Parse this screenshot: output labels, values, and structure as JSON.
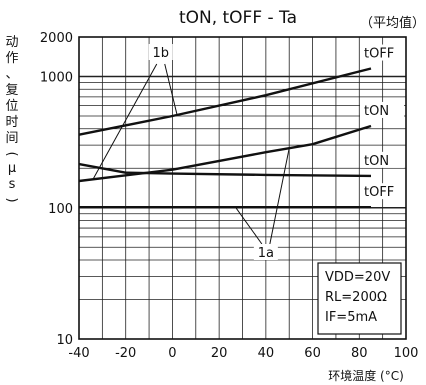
{
  "chart_data": {
    "type": "line",
    "title": "tON, tOFF - Ta",
    "title_note": "（平均值）",
    "ylabel": "动作、复位时间（µs）",
    "xlabel": "环境温度 (°C)",
    "xlim": [
      -40,
      100
    ],
    "ylim": [
      10,
      2000
    ],
    "yscale": "log",
    "grid": true,
    "x_ticks": [
      -40,
      -20,
      0,
      20,
      40,
      60,
      80,
      100
    ],
    "y_ticks": [
      {
        "v": 10,
        "label": "10"
      },
      {
        "v": 100,
        "label": "100"
      },
      {
        "v": 1000,
        "label": "1000"
      },
      {
        "v": 2000,
        "label": "2000"
      }
    ],
    "series": [
      {
        "name": "tOFF",
        "group": "1b",
        "x": [
          -40,
          0,
          40,
          85
        ],
        "y": [
          360,
          500,
          720,
          1150
        ]
      },
      {
        "name": "tON",
        "group": "1b",
        "x": [
          -40,
          0,
          40,
          60,
          85
        ],
        "y": [
          160,
          195,
          265,
          305,
          420
        ]
      },
      {
        "name": "tON",
        "group": "1a",
        "x": [
          -40,
          -20,
          0,
          40,
          85
        ],
        "y": [
          215,
          185,
          182,
          178,
          175
        ]
      },
      {
        "name": "tOFF",
        "group": "1a",
        "x": [
          -40,
          0,
          40,
          85
        ],
        "y": [
          101,
          101,
          101,
          101
        ]
      }
    ],
    "callouts": [
      "1b",
      "1a"
    ],
    "conditions": [
      "VDD=20V",
      "RL=200Ω",
      "IF=5mA"
    ]
  }
}
